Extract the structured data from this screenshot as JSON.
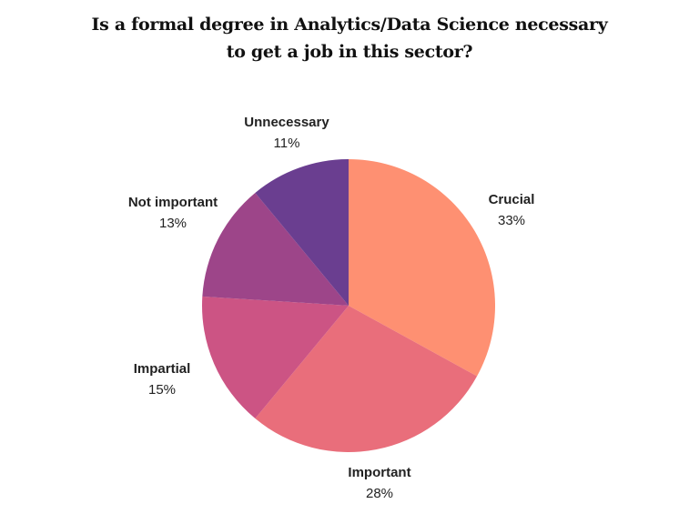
{
  "chart_data": {
    "type": "pie",
    "title_lines": [
      "Is a formal degree in Analytics/Data Science necessary",
      "to get a job in this sector?"
    ],
    "slices": [
      {
        "label": "Crucial",
        "value": 33,
        "value_label": "33%",
        "color": "#FE9072"
      },
      {
        "label": "Important",
        "value": 28,
        "value_label": "28%",
        "color": "#E96E7B"
      },
      {
        "label": "Impartial",
        "value": 15,
        "value_label": "15%",
        "color": "#CC5484"
      },
      {
        "label": "Not important",
        "value": 13,
        "value_label": "13%",
        "color": "#9D4589"
      },
      {
        "label": "Unnecessary",
        "value": 11,
        "value_label": "11%",
        "color": "#6A3E90"
      }
    ],
    "start_angle": "top, clockwise",
    "legend": "none (inline labels)"
  }
}
